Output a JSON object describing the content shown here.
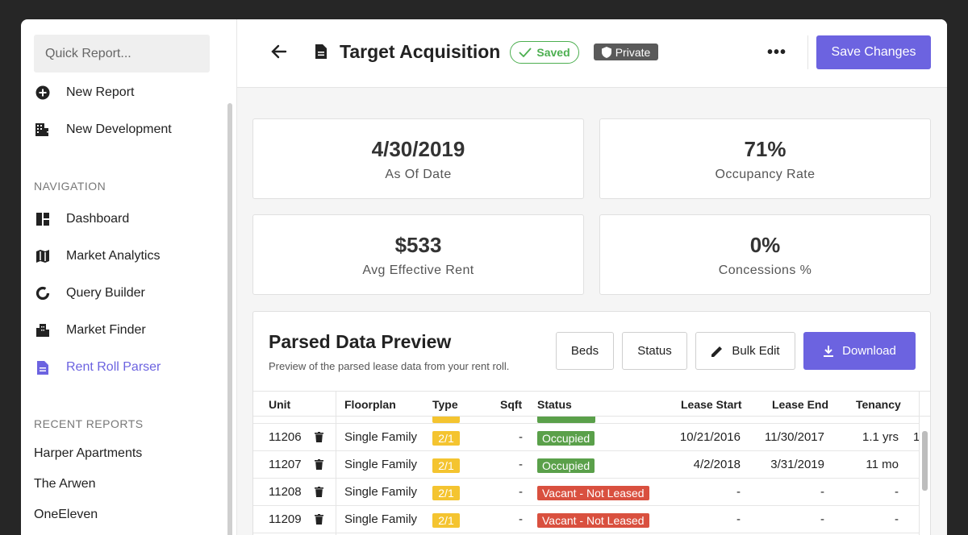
{
  "sidebar": {
    "quick_report_placeholder": "Quick Report...",
    "actions": [
      {
        "label": "New Report",
        "icon": "plus-circle-icon"
      },
      {
        "label": "New Development",
        "icon": "building-plus-icon"
      }
    ],
    "nav_heading": "NAVIGATION",
    "nav_items": [
      {
        "label": "Dashboard",
        "icon": "dashboard-icon"
      },
      {
        "label": "Market Analytics",
        "icon": "map-icon"
      },
      {
        "label": "Query Builder",
        "icon": "donut-icon"
      },
      {
        "label": "Market Finder",
        "icon": "city-icon"
      },
      {
        "label": "Rent Roll Parser",
        "icon": "document-icon",
        "active": true
      }
    ],
    "recent_heading": "RECENT REPORTS",
    "recent_items": [
      "Harper Apartments",
      "The Arwen",
      "OneEleven"
    ]
  },
  "header": {
    "title": "Target Acquisition",
    "saved_label": "Saved",
    "private_label": "Private",
    "more_label": "•••",
    "save_button": "Save Changes"
  },
  "cards": [
    {
      "value": "4/30/2019",
      "label": "As Of Date"
    },
    {
      "value": "71%",
      "label": "Occupancy Rate"
    },
    {
      "value": "$533",
      "label": "Avg Effective Rent"
    },
    {
      "value": "0%",
      "label": "Concessions %"
    }
  ],
  "preview": {
    "title": "Parsed Data Preview",
    "subtitle": "Preview of the parsed lease data from your rent roll.",
    "buttons": {
      "beds": "Beds",
      "status": "Status",
      "bulk_edit": "Bulk Edit",
      "download": "Download"
    },
    "columns": [
      "Unit",
      "Floorplan",
      "Type",
      "Sqft",
      "Status",
      "Lease Start",
      "Lease End",
      "Tenancy"
    ],
    "rows": [
      {
        "unit": "11206",
        "floorplan": "Single Family",
        "type": "2/1",
        "sqft": "-",
        "status": "Occupied",
        "lease_start": "10/21/2016",
        "lease_end": "11/30/2017",
        "tenancy": "1.1 yrs",
        "extra": "1"
      },
      {
        "unit": "11207",
        "floorplan": "Single Family",
        "type": "2/1",
        "sqft": "-",
        "status": "Occupied",
        "lease_start": "4/2/2018",
        "lease_end": "3/31/2019",
        "tenancy": "11 mo",
        "extra": ""
      },
      {
        "unit": "11208",
        "floorplan": "Single Family",
        "type": "2/1",
        "sqft": "-",
        "status": "Vacant - Not Leased",
        "lease_start": "-",
        "lease_end": "-",
        "tenancy": "-",
        "extra": ""
      },
      {
        "unit": "11209",
        "floorplan": "Single Family",
        "type": "2/1",
        "sqft": "-",
        "status": "Vacant - Not Leased",
        "lease_start": "-",
        "lease_end": "-",
        "tenancy": "-",
        "extra": ""
      }
    ]
  },
  "colors": {
    "accent": "#6c63e0",
    "occupied": "#5aa04a",
    "vacant": "#d9503f",
    "type_badge": "#f4c430",
    "saved": "#4caf50"
  }
}
